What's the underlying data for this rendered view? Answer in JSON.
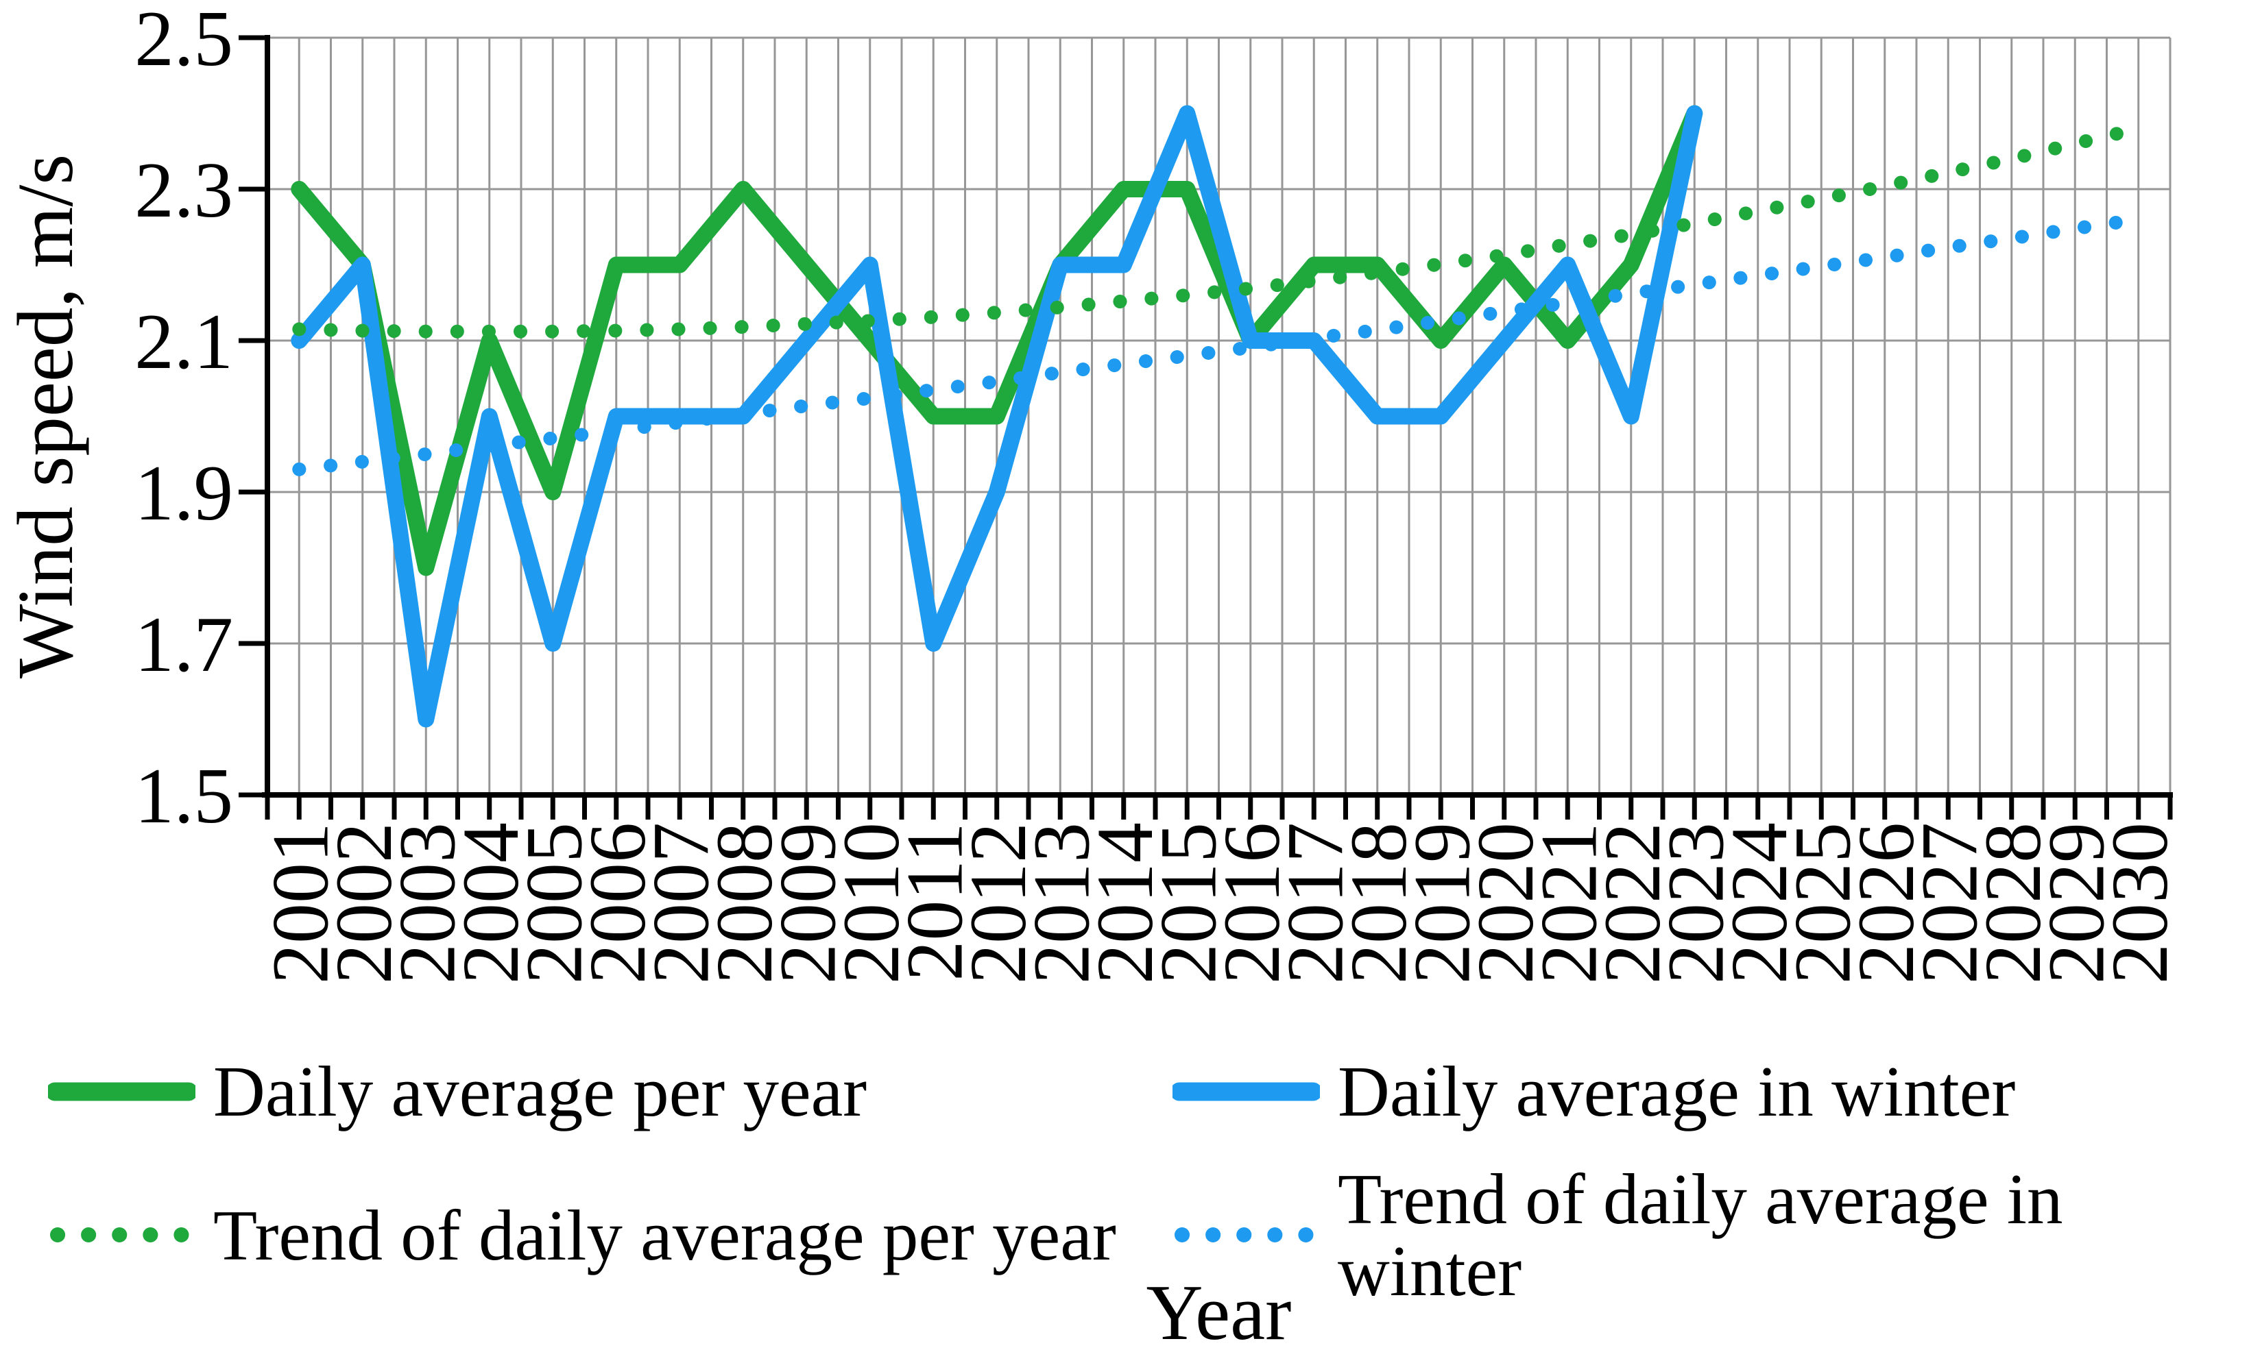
{
  "chart_data": {
    "type": "line",
    "title": "",
    "xlabel": "Year",
    "ylabel": "Wind speed, m/s",
    "ylim": [
      1.5,
      2.5
    ],
    "yticks": [
      2.5,
      2.3,
      2.1,
      1.9,
      1.7,
      1.5
    ],
    "ytick_labels": [
      "2.5",
      "2.3",
      "2.1",
      "1.9",
      "1.7",
      "1.5"
    ],
    "categories": [
      2001,
      2002,
      2003,
      2004,
      2005,
      2006,
      2007,
      2008,
      2009,
      2010,
      2011,
      2012,
      2013,
      2014,
      2015,
      2016,
      2017,
      2018,
      2019,
      2020,
      2021,
      2022,
      2023,
      2024,
      2025,
      2026,
      2027,
      2028,
      2029,
      2030
    ],
    "grid": true,
    "legend_position": "bottom",
    "axis_color": "#000000",
    "grid_color": "#979797",
    "series": [
      {
        "name": "Daily average per year",
        "color": "#1fa83c",
        "style": "solid",
        "values": [
          2.3,
          2.2,
          1.8,
          2.1,
          1.9,
          2.2,
          2.2,
          2.3,
          2.2,
          2.1,
          2.0,
          2.0,
          2.2,
          2.3,
          2.3,
          2.1,
          2.2,
          2.2,
          2.1,
          2.2,
          2.1,
          2.2,
          2.4,
          null,
          null,
          null,
          null,
          null,
          null,
          null
        ]
      },
      {
        "name": "Daily average in winter",
        "color": "#1e9bf0",
        "style": "solid",
        "values": [
          2.1,
          2.2,
          1.6,
          2.0,
          1.7,
          2.0,
          2.0,
          2.0,
          2.1,
          2.2,
          1.7,
          1.9,
          2.2,
          2.2,
          2.4,
          2.1,
          2.1,
          2.0,
          2.0,
          2.1,
          2.2,
          2.0,
          2.4,
          null,
          null,
          null,
          null,
          null,
          null,
          null
        ]
      },
      {
        "name": "Trend of daily average per year",
        "color": "#1fa83c",
        "style": "dotted",
        "values": [
          2.115,
          2.113,
          2.112,
          2.112,
          2.112,
          2.113,
          2.115,
          2.118,
          2.122,
          2.126,
          2.131,
          2.137,
          2.144,
          2.152,
          2.16,
          2.169,
          2.179,
          2.19,
          2.201,
          2.213,
          2.227,
          2.24,
          2.255,
          2.271,
          2.287,
          2.304,
          2.322,
          2.34,
          2.36,
          2.38
        ]
      },
      {
        "name": "Trend of daily average in winter",
        "color": "#1e9bf0",
        "style": "dotted",
        "values": [
          1.93,
          1.94,
          1.95,
          1.961,
          1.971,
          1.981,
          1.992,
          2.003,
          2.014,
          2.024,
          2.035,
          2.046,
          2.058,
          2.069,
          2.08,
          2.091,
          2.103,
          2.114,
          2.126,
          2.138,
          2.15,
          2.162,
          2.174,
          2.186,
          2.198,
          2.21,
          2.223,
          2.235,
          2.248,
          2.26
        ]
      }
    ]
  }
}
